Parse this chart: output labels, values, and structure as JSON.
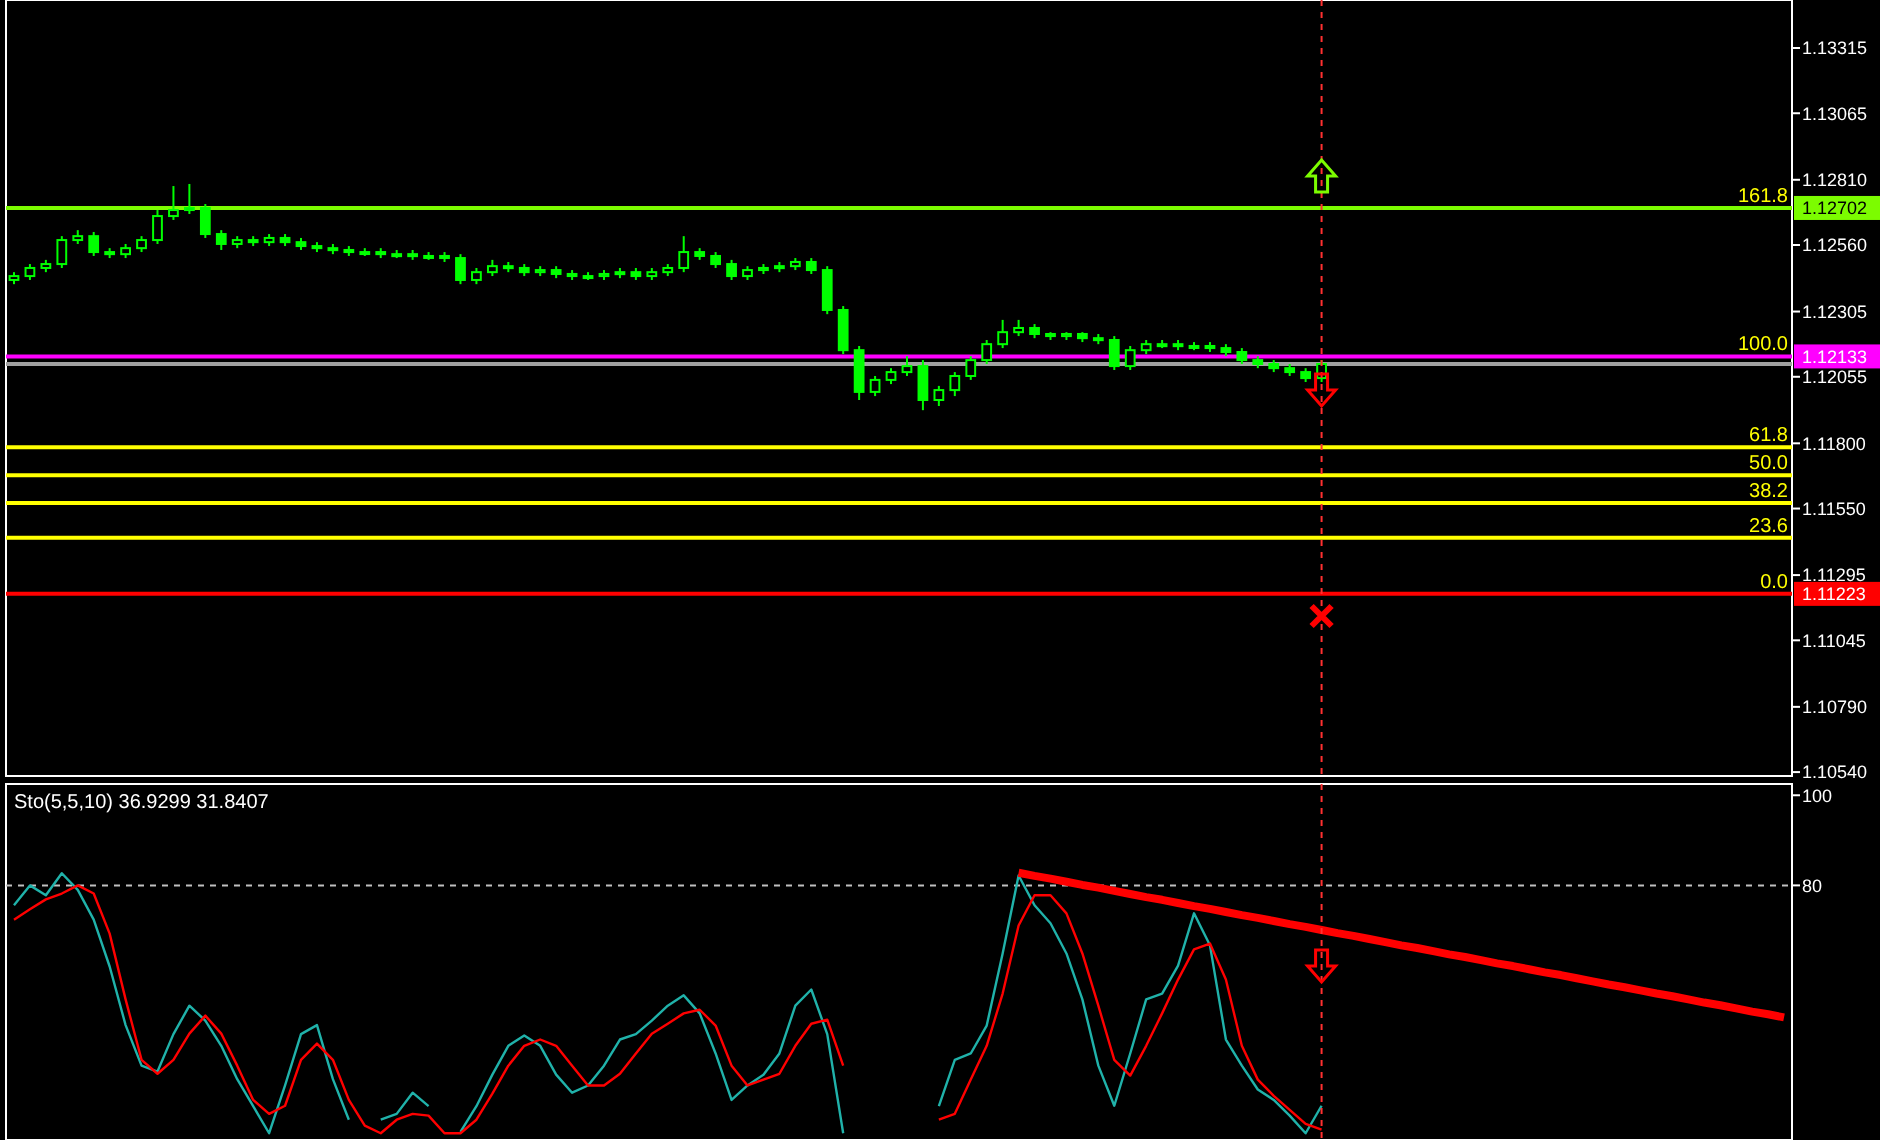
{
  "chart_data": [
    {
      "type": "candlestick",
      "color": "#00ff00",
      "categories": [
        null,
        null,
        null,
        null,
        null,
        null,
        null,
        null,
        null,
        null,
        null,
        null,
        null,
        null,
        null,
        null,
        null,
        null,
        null,
        null,
        null,
        null,
        null,
        null,
        null,
        null,
        null,
        null,
        null,
        null,
        null,
        null,
        null,
        null,
        null,
        null,
        null,
        null,
        null,
        null,
        null,
        null,
        null,
        null,
        null,
        null,
        null,
        null,
        null,
        null,
        null,
        null,
        null,
        null,
        null,
        null,
        null,
        null,
        null,
        null,
        null,
        null,
        null,
        null,
        null,
        null,
        null,
        null,
        null,
        null,
        null,
        null,
        null,
        null,
        null,
        null,
        null,
        null,
        null,
        null,
        null,
        null,
        null,
        null,
        null,
        null,
        null,
        null,
        null,
        null,
        null,
        null,
        null,
        null,
        null,
        null,
        null,
        null,
        null,
        null,
        null,
        null,
        null,
        null,
        null,
        null,
        null,
        null,
        null,
        null,
        null,
        null
      ],
      "ohlc": [
        [
          1.12426,
          1.12456,
          1.1241,
          1.12441
        ],
        [
          1.12441,
          1.12487,
          1.12426,
          1.12472
        ],
        [
          1.12472,
          1.12503,
          1.12456,
          1.12487
        ],
        [
          1.12487,
          1.12594,
          1.12472,
          1.12579
        ],
        [
          1.12579,
          1.12617,
          1.12564,
          1.12594
        ],
        [
          1.12594,
          1.1261,
          1.12518,
          1.12533
        ],
        [
          1.12533,
          1.12548,
          1.1251,
          1.12525
        ],
        [
          1.12525,
          1.12564,
          1.1251,
          1.12548
        ],
        [
          1.12548,
          1.12594,
          1.12533,
          1.12579
        ],
        [
          1.12579,
          1.12694,
          1.12564,
          1.12671
        ],
        [
          1.12671,
          1.12786,
          1.12656,
          1.12694
        ],
        [
          1.12694,
          1.12794,
          1.12679,
          1.12702
        ],
        [
          1.12702,
          1.12717,
          1.12587,
          1.12602
        ],
        [
          1.12602,
          1.12617,
          1.12541,
          1.12564
        ],
        [
          1.12564,
          1.12594,
          1.12548,
          1.12579
        ],
        [
          1.12579,
          1.12594,
          1.12556,
          1.12571
        ],
        [
          1.12571,
          1.12602,
          1.12556,
          1.12587
        ],
        [
          1.12587,
          1.12602,
          1.12556,
          1.12571
        ],
        [
          1.12571,
          1.12587,
          1.12541,
          1.12556
        ],
        [
          1.12556,
          1.12571,
          1.12533,
          1.12548
        ],
        [
          1.12548,
          1.12564,
          1.12525,
          1.12541
        ],
        [
          1.12541,
          1.12556,
          1.12518,
          1.12533
        ],
        [
          1.12533,
          1.12548,
          1.12518,
          1.12533
        ],
        [
          1.12533,
          1.12548,
          1.1251,
          1.12525
        ],
        [
          1.12525,
          1.12541,
          1.1251,
          1.12525
        ],
        [
          1.12525,
          1.12541,
          1.12503,
          1.12518
        ],
        [
          1.12518,
          1.12533,
          1.12503,
          1.12518
        ],
        [
          1.12518,
          1.12533,
          1.12495,
          1.1251
        ],
        [
          1.1251,
          1.12525,
          1.1241,
          1.12426
        ],
        [
          1.12426,
          1.12472,
          1.1241,
          1.12456
        ],
        [
          1.12456,
          1.12503,
          1.12441,
          1.12479
        ],
        [
          1.12479,
          1.12495,
          1.12456,
          1.12472
        ],
        [
          1.12472,
          1.12487,
          1.12441,
          1.12456
        ],
        [
          1.12456,
          1.12479,
          1.12441,
          1.12464
        ],
        [
          1.12464,
          1.12479,
          1.12433,
          1.12449
        ],
        [
          1.12449,
          1.12464,
          1.12426,
          1.12441
        ],
        [
          1.12441,
          1.12456,
          1.12426,
          1.12441
        ],
        [
          1.12441,
          1.12464,
          1.12426,
          1.12449
        ],
        [
          1.12449,
          1.12472,
          1.12433,
          1.12456
        ],
        [
          1.12456,
          1.12472,
          1.12426,
          1.12441
        ],
        [
          1.12441,
          1.12472,
          1.12426,
          1.12456
        ],
        [
          1.12456,
          1.12487,
          1.12441,
          1.12472
        ],
        [
          1.12472,
          1.12594,
          1.12456,
          1.12533
        ],
        [
          1.12533,
          1.12548,
          1.12503,
          1.12518
        ],
        [
          1.12518,
          1.12533,
          1.12472,
          1.12487
        ],
        [
          1.12487,
          1.12503,
          1.12426,
          1.12441
        ],
        [
          1.12441,
          1.12479,
          1.12426,
          1.12464
        ],
        [
          1.12464,
          1.12487,
          1.12449,
          1.12472
        ],
        [
          1.12472,
          1.12495,
          1.12456,
          1.12479
        ],
        [
          1.12479,
          1.1251,
          1.12464,
          1.12495
        ],
        [
          1.12495,
          1.1251,
          1.12449,
          1.12464
        ],
        [
          1.12464,
          1.12479,
          1.12295,
          1.12311
        ],
        [
          1.12311,
          1.12326,
          1.12142,
          1.12157
        ],
        [
          1.12157,
          1.12173,
          1.11966,
          1.11997
        ],
        [
          1.11997,
          1.12058,
          1.11981,
          1.12043
        ],
        [
          1.12043,
          1.12088,
          1.12027,
          1.12073
        ],
        [
          1.12073,
          1.12134,
          1.12058,
          1.12096
        ],
        [
          1.12096,
          1.12119,
          1.11927,
          1.11966
        ],
        [
          1.11966,
          1.1202,
          1.11943,
          1.12004
        ],
        [
          1.12004,
          1.12073,
          1.11981,
          1.12058
        ],
        [
          1.12058,
          1.12134,
          1.12043,
          1.12119
        ],
        [
          1.12119,
          1.12196,
          1.12104,
          1.1218
        ],
        [
          1.1218,
          1.12273,
          1.12165,
          1.12226
        ],
        [
          1.12226,
          1.12273,
          1.12211,
          1.12242
        ],
        [
          1.12242,
          1.12257,
          1.12203,
          1.12219
        ],
        [
          1.12219,
          1.12226,
          1.12196,
          1.12211
        ],
        [
          1.12211,
          1.12226,
          1.12196,
          1.12219
        ],
        [
          1.12219,
          1.12226,
          1.12188,
          1.12203
        ],
        [
          1.12203,
          1.12219,
          1.1218,
          1.12196
        ],
        [
          1.12196,
          1.12211,
          1.12081,
          1.12096
        ],
        [
          1.12096,
          1.12173,
          1.12081,
          1.12157
        ],
        [
          1.12157,
          1.12196,
          1.12142,
          1.1218
        ],
        [
          1.1218,
          1.12196,
          1.12165,
          1.1218
        ],
        [
          1.1218,
          1.12196,
          1.12157,
          1.12173
        ],
        [
          1.12173,
          1.12188,
          1.12157,
          1.12173
        ],
        [
          1.12173,
          1.12188,
          1.1215,
          1.12165
        ],
        [
          1.12165,
          1.1218,
          1.12134,
          1.1215
        ],
        [
          1.1215,
          1.12165,
          1.12104,
          1.12119
        ],
        [
          1.12119,
          1.12134,
          1.12088,
          1.12104
        ],
        [
          1.12104,
          1.12119,
          1.12073,
          1.12088
        ],
        [
          1.12088,
          1.12104,
          1.12058,
          1.12073
        ],
        [
          1.12073,
          1.12088,
          1.12035,
          1.1205
        ],
        [
          1.1205,
          1.12119,
          1.12035,
          1.12104
        ],
        null,
        null,
        null,
        null,
        null,
        null,
        null,
        null,
        null,
        null,
        null,
        null,
        null,
        null,
        null,
        null,
        null,
        null,
        null,
        null,
        null,
        null,
        null,
        null,
        null,
        null,
        null,
        null,
        null
      ],
      "ylim": [
        1.10525,
        1.13499
      ],
      "yticks": [
        1.13315,
        1.13065,
        {
          "value": 1.1281,
          "label": "1.12810"
        },
        {
          "value": 1.1256,
          "label": "1.12560"
        },
        1.12305,
        1.12055,
        {
          "value": 1.118,
          "label": "1.11800"
        },
        {
          "value": 1.1155,
          "label": "1.11550"
        },
        1.11295,
        1.11045,
        {
          "value": 1.1079,
          "label": "1.10790"
        },
        {
          "value": 1.1054,
          "label": "1.10540"
        }
      ],
      "ref_lines": [
        {
          "axis": "y",
          "value": 1.12702,
          "label": "1.12702",
          "color": "#7cfc00"
        },
        {
          "axis": "y",
          "value": 1.12133,
          "label": "1.12133",
          "color": "#ff00ff"
        },
        {
          "axis": "y",
          "value": 1.11785,
          "label": null,
          "color": "#ffff00"
        },
        {
          "axis": "y",
          "value": 1.11678,
          "label": null,
          "color": "#ffff00"
        },
        {
          "axis": "y",
          "value": 1.11571,
          "label": null,
          "color": "#ffff00"
        },
        {
          "axis": "y",
          "value": 1.11438,
          "label": null,
          "color": "#ffff00"
        },
        {
          "axis": "y",
          "value": 1.11223,
          "label": "1.11223",
          "color": "#ff0000"
        },
        {
          "axis": "y",
          "value": 1.12104,
          "label": null,
          "color": "#a0a0a0"
        }
      ],
      "annotations": [
        "161.8",
        "100.0",
        "61.8",
        "50.0",
        "38.2",
        "23.6",
        "0.0"
      ]
    },
    {
      "type": "line",
      "title": "Sto(5,5,10) 36.9299 31.8407",
      "categories": [
        null,
        null,
        null,
        null,
        null,
        null,
        null,
        null,
        null,
        null,
        null,
        null,
        null,
        null,
        null,
        null,
        null,
        null,
        null,
        null,
        null,
        null,
        null,
        null,
        null,
        null,
        null,
        null,
        null,
        null,
        null,
        null,
        null,
        null,
        null,
        null,
        null,
        null,
        null,
        null,
        null,
        null,
        null,
        null,
        null,
        null,
        null,
        null,
        null,
        null,
        null,
        null,
        null,
        null,
        null,
        null,
        null,
        null,
        null,
        null,
        null,
        null,
        null,
        null,
        null,
        null,
        null,
        null,
        null,
        null,
        null,
        null,
        null,
        null,
        null,
        null,
        null,
        null,
        null,
        null,
        null,
        null,
        null,
        null,
        null,
        null,
        null,
        null,
        null,
        null,
        null,
        null,
        null,
        null,
        null,
        null,
        null,
        null,
        null,
        null,
        null,
        null,
        null,
        null,
        null,
        null,
        null,
        null,
        null,
        null,
        null,
        null
      ],
      "series": [
        {
          "color": "#20b2aa",
          "values": [
            75.6,
            80,
            77.8,
            82.7,
            79,
            72.4,
            62,
            49,
            40,
            38.7,
            47,
            53.3,
            50,
            44.4,
            37,
            31,
            25,
            35.6,
            47,
            49,
            37,
            28,
            null,
            28,
            29.3,
            34,
            31,
            null,
            25.3,
            31,
            38,
            44.4,
            46.7,
            44.4,
            38,
            34,
            35.6,
            40,
            45.8,
            47,
            50,
            53.3,
            55.6,
            51.6,
            42.7,
            32.4,
            35.6,
            38,
            42.7,
            53.3,
            56.9,
            47,
            25,
            null,
            null,
            null,
            null,
            null,
            31,
            41.3,
            42.7,
            48.9,
            64.9,
            82.2,
            75.6,
            71.6,
            64.9,
            54.7,
            40,
            31.1,
            42.7,
            54.7,
            56,
            62.2,
            73.8,
            66.7,
            45.8,
            40,
            34.7,
            32.4,
            28.9,
            25,
            31.1,
            null,
            null,
            null,
            null,
            null,
            null,
            null,
            null,
            null,
            null,
            null,
            null,
            null,
            null,
            null,
            null,
            null,
            null,
            null,
            null,
            null,
            null,
            null,
            null,
            null,
            null,
            null,
            null,
            null
          ]
        },
        {
          "color": "#ff0000",
          "values": [
            72.4,
            74.7,
            76.9,
            78.2,
            80,
            78.2,
            69.3,
            54.7,
            41.3,
            38.2,
            41.3,
            47.1,
            51.1,
            47.1,
            40,
            32.4,
            29.3,
            31.1,
            41.3,
            44.9,
            41.3,
            32.4,
            26.7,
            25,
            28,
            29.3,
            28.9,
            25,
            25,
            28,
            33.8,
            40,
            44.4,
            45.8,
            44.4,
            40,
            35.6,
            35.6,
            38.2,
            42.7,
            47.1,
            49.3,
            51.6,
            52.4,
            48.9,
            40,
            35.6,
            36.9,
            38.2,
            44.4,
            49.3,
            50.2,
            40,
            null,
            null,
            null,
            null,
            null,
            28,
            29.3,
            36.9,
            44.4,
            56,
            71.1,
            77.8,
            77.8,
            73.8,
            64.9,
            53.3,
            41.3,
            37.8,
            44.4,
            51.6,
            59.1,
            65.8,
            67.1,
            59.1,
            44.4,
            36.9,
            33.3,
            30.2,
            27.1,
            25.8,
            null,
            null,
            null,
            null,
            null,
            null,
            null,
            null,
            null,
            null,
            null,
            null,
            null,
            null,
            null,
            null,
            null,
            null,
            null,
            null,
            null,
            null,
            null,
            null,
            null,
            null,
            null,
            null,
            null
          ]
        },
        {
          "color": "#ff0000",
          "values": [
            null,
            null,
            null,
            null,
            null,
            null,
            null,
            null,
            null,
            null,
            null,
            null,
            null,
            null,
            null,
            null,
            null,
            null,
            null,
            null,
            null,
            null,
            null,
            null,
            null,
            null,
            null,
            null,
            null,
            null,
            null,
            null,
            null,
            null,
            null,
            null,
            null,
            null,
            null,
            null,
            null,
            null,
            null,
            null,
            null,
            null,
            null,
            null,
            null,
            null,
            null,
            null,
            null,
            null,
            null,
            null,
            null,
            null,
            null,
            null,
            null,
            null,
            null,
            82.8,
            82.1,
            81.5,
            80.8,
            80.1,
            79.5,
            78.8,
            78.1,
            77.4,
            76.8,
            76.1,
            75.4,
            74.8,
            74.1,
            73.4,
            72.8,
            72.1,
            71.4,
            70.8,
            70.1,
            69.4,
            68.8,
            68.1,
            67.4,
            66.7,
            66.1,
            65.4,
            64.7,
            64.1,
            63.4,
            62.7,
            62.1,
            61.4,
            60.7,
            60.1,
            59.4,
            58.7,
            58.0,
            57.4,
            56.7,
            56.0,
            55.4,
            54.7,
            54.0,
            53.4,
            52.7,
            52.0,
            51.4,
            50.7
          ]
        }
      ],
      "ylim": [
        23.5,
        102.5
      ],
      "yticks": [
        100,
        80
      ],
      "ref_lines": [
        {
          "axis": "y",
          "value": 80,
          "label": null,
          "color": "#c0c0c0",
          "line_style": "dashed"
        }
      ]
    }
  ]
}
